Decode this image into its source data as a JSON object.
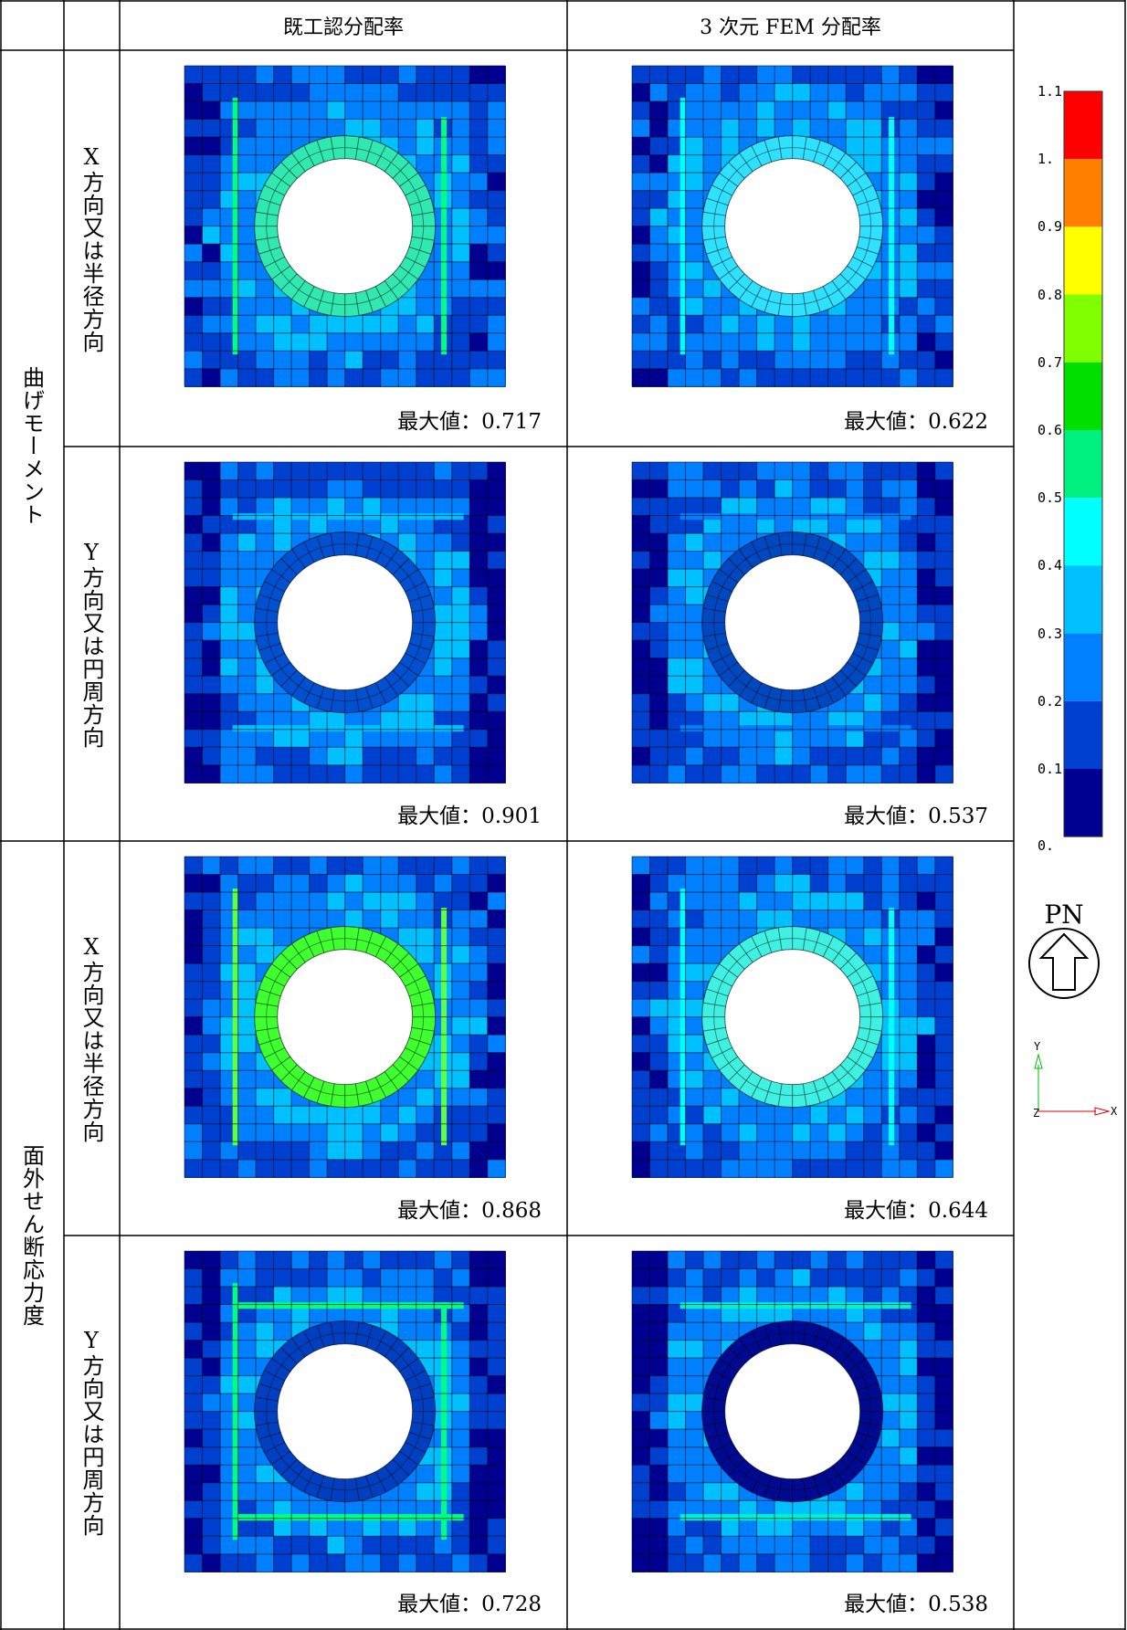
{
  "table": {
    "columns": [
      "既工認分配率",
      "3 次元 FEM 分配率"
    ],
    "groups": [
      {
        "label": "曲げモーメント",
        "rows": [
          {
            "label": "X方向又は半径方向",
            "cells": [
              "最大値：0.717",
              "最大値：0.622"
            ]
          },
          {
            "label": "Y方向又は円周方向",
            "cells": [
              "最大値：0.901",
              "最大値：0.537"
            ]
          }
        ]
      },
      {
        "label": "面外せん断応力度",
        "rows": [
          {
            "label": "X方向又は半径方向",
            "cells": [
              "最大値：0.868",
              "最大値：0.644"
            ]
          },
          {
            "label": "Y方向又は円周方向",
            "cells": [
              "最大値：0.728",
              "最大値：0.538"
            ]
          }
        ]
      }
    ]
  },
  "legend": {
    "labels": [
      "1.1",
      "1.",
      "0.9",
      "0.8",
      "0.7",
      "0.6",
      "0.5",
      "0.4",
      "0.3",
      "0.2",
      "0.1",
      "0."
    ],
    "colors": [
      "#ff0000",
      "#ff8000",
      "#ffff00",
      "#80ff00",
      "#00e000",
      "#00f080",
      "#00ffff",
      "#00c0ff",
      "#0080ff",
      "#0040d0",
      "#000090"
    ]
  },
  "orientation": {
    "label": "PN"
  },
  "axes": {
    "y": "Y",
    "z": "Z",
    "x": "X"
  }
}
